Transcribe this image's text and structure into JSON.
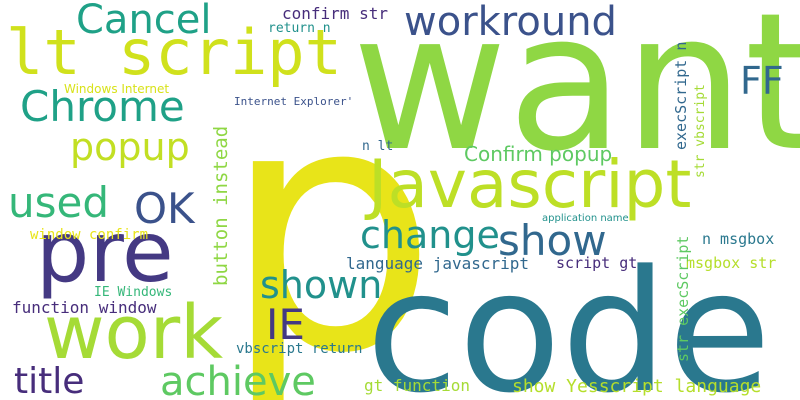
{
  "words": {
    "p": "p",
    "want": "want",
    "code": "code",
    "javascript": "Javascript",
    "pre": "pre",
    "work": "work",
    "lt_script": "lt script",
    "workround": "workround",
    "cancel": "Cancel",
    "chrome": "Chrome",
    "popup": "popup",
    "used": "used",
    "ok": "OK",
    "show_1": "show",
    "change": "change",
    "shown": "shown",
    "ie": "IE",
    "ff": "FF",
    "achieve": "achieve",
    "title": "title",
    "confirm_popup": "Confirm popup",
    "button_instead": "button instead",
    "confirm_str": "confirm str",
    "return_n": "return n",
    "windows_internet": "Windows Internet",
    "internet_explorer": "Internet Explorer'",
    "n_lt": "n lt",
    "window_confirm": "window confirm",
    "ie_windows": "IE Windows",
    "function_window": "function window",
    "language_javascript": "language javascript",
    "vbscript_return": "vbscript return",
    "gt_function": "gt function",
    "show_yesscript_language": "show Yesscript language",
    "script_gt": "script gt",
    "n_msgbox": "n msgbox",
    "msgbox_str": "msgbox str",
    "application_name": "application name",
    "str_execscript_vertical": "str execScript",
    "execscript_n": "execScript n",
    "str_vbscript": "str vbscript"
  },
  "colors": {
    "yellow": "#e8e419",
    "lime": "#8fd744",
    "green": "#35b779",
    "green_light": "#5ec962",
    "green_pale": "#a5db36",
    "teal": "#21918c",
    "teal_dark": "#2a788e",
    "blue": "#31688e",
    "indigo": "#3b528b",
    "indigo_dark": "#443983",
    "purple": "#472d7b",
    "purple_dark": "#440154",
    "mint": "#1fa187"
  }
}
